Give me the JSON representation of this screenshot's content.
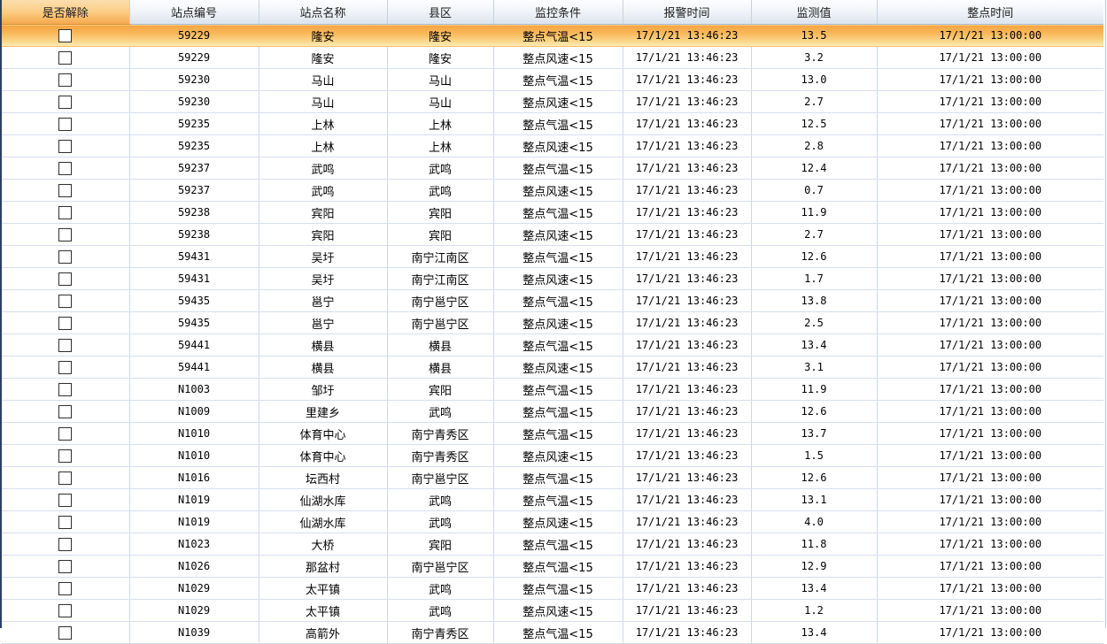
{
  "colors": {
    "selected_row_gradient_top": "#f5a440",
    "selected_row_gradient_bottom": "#fdedbc",
    "selected_header_top": "#fcdfae",
    "selected_header_bottom": "#f6a94e",
    "header_gradient_top": "#fdfeff",
    "header_gradient_bottom": "#dde3ee",
    "gridline_vertical": "#cbd8ea",
    "gridline_horizontal": "#d7dfee",
    "left_border": "#2e3e64"
  },
  "table": {
    "columns": [
      {
        "key": "release",
        "label": "是否解除"
      },
      {
        "key": "station_id",
        "label": "站点编号"
      },
      {
        "key": "station_name",
        "label": "站点名称"
      },
      {
        "key": "district",
        "label": "县区"
      },
      {
        "key": "condition",
        "label": "监控条件"
      },
      {
        "key": "alarm_time",
        "label": "报警时间"
      },
      {
        "key": "value",
        "label": "监测值"
      },
      {
        "key": "hour_time",
        "label": "整点时间"
      }
    ],
    "rows": [
      {
        "selected": true,
        "checked": false,
        "station_id": "59229",
        "station_name": "隆安",
        "district": "隆安",
        "condition": "整点气温<15",
        "alarm_time": "17/1/21 13:46:23",
        "value": "13.5",
        "hour_time": "17/1/21 13:00:00"
      },
      {
        "selected": false,
        "checked": false,
        "station_id": "59229",
        "station_name": "隆安",
        "district": "隆安",
        "condition": "整点风速<15",
        "alarm_time": "17/1/21 13:46:23",
        "value": "3.2",
        "hour_time": "17/1/21 13:00:00"
      },
      {
        "selected": false,
        "checked": false,
        "station_id": "59230",
        "station_name": "马山",
        "district": "马山",
        "condition": "整点气温<15",
        "alarm_time": "17/1/21 13:46:23",
        "value": "13.0",
        "hour_time": "17/1/21 13:00:00"
      },
      {
        "selected": false,
        "checked": false,
        "station_id": "59230",
        "station_name": "马山",
        "district": "马山",
        "condition": "整点风速<15",
        "alarm_time": "17/1/21 13:46:23",
        "value": "2.7",
        "hour_time": "17/1/21 13:00:00"
      },
      {
        "selected": false,
        "checked": false,
        "station_id": "59235",
        "station_name": "上林",
        "district": "上林",
        "condition": "整点气温<15",
        "alarm_time": "17/1/21 13:46:23",
        "value": "12.5",
        "hour_time": "17/1/21 13:00:00"
      },
      {
        "selected": false,
        "checked": false,
        "station_id": "59235",
        "station_name": "上林",
        "district": "上林",
        "condition": "整点风速<15",
        "alarm_time": "17/1/21 13:46:23",
        "value": "2.8",
        "hour_time": "17/1/21 13:00:00"
      },
      {
        "selected": false,
        "checked": false,
        "station_id": "59237",
        "station_name": "武鸣",
        "district": "武鸣",
        "condition": "整点气温<15",
        "alarm_time": "17/1/21 13:46:23",
        "value": "12.4",
        "hour_time": "17/1/21 13:00:00"
      },
      {
        "selected": false,
        "checked": false,
        "station_id": "59237",
        "station_name": "武鸣",
        "district": "武鸣",
        "condition": "整点风速<15",
        "alarm_time": "17/1/21 13:46:23",
        "value": "0.7",
        "hour_time": "17/1/21 13:00:00"
      },
      {
        "selected": false,
        "checked": false,
        "station_id": "59238",
        "station_name": "宾阳",
        "district": "宾阳",
        "condition": "整点气温<15",
        "alarm_time": "17/1/21 13:46:23",
        "value": "11.9",
        "hour_time": "17/1/21 13:00:00"
      },
      {
        "selected": false,
        "checked": false,
        "station_id": "59238",
        "station_name": "宾阳",
        "district": "宾阳",
        "condition": "整点风速<15",
        "alarm_time": "17/1/21 13:46:23",
        "value": "2.7",
        "hour_time": "17/1/21 13:00:00"
      },
      {
        "selected": false,
        "checked": false,
        "station_id": "59431",
        "station_name": "吴圩",
        "district": "南宁江南区",
        "condition": "整点气温<15",
        "alarm_time": "17/1/21 13:46:23",
        "value": "12.6",
        "hour_time": "17/1/21 13:00:00"
      },
      {
        "selected": false,
        "checked": false,
        "station_id": "59431",
        "station_name": "吴圩",
        "district": "南宁江南区",
        "condition": "整点风速<15",
        "alarm_time": "17/1/21 13:46:23",
        "value": "1.7",
        "hour_time": "17/1/21 13:00:00"
      },
      {
        "selected": false,
        "checked": false,
        "station_id": "59435",
        "station_name": "邕宁",
        "district": "南宁邕宁区",
        "condition": "整点气温<15",
        "alarm_time": "17/1/21 13:46:23",
        "value": "13.8",
        "hour_time": "17/1/21 13:00:00"
      },
      {
        "selected": false,
        "checked": false,
        "station_id": "59435",
        "station_name": "邕宁",
        "district": "南宁邕宁区",
        "condition": "整点风速<15",
        "alarm_time": "17/1/21 13:46:23",
        "value": "2.5",
        "hour_time": "17/1/21 13:00:00"
      },
      {
        "selected": false,
        "checked": false,
        "station_id": "59441",
        "station_name": "横县",
        "district": "横县",
        "condition": "整点气温<15",
        "alarm_time": "17/1/21 13:46:23",
        "value": "13.4",
        "hour_time": "17/1/21 13:00:00"
      },
      {
        "selected": false,
        "checked": false,
        "station_id": "59441",
        "station_name": "横县",
        "district": "横县",
        "condition": "整点风速<15",
        "alarm_time": "17/1/21 13:46:23",
        "value": "3.1",
        "hour_time": "17/1/21 13:00:00"
      },
      {
        "selected": false,
        "checked": false,
        "station_id": "N1003",
        "station_name": "邹圩",
        "district": "宾阳",
        "condition": "整点气温<15",
        "alarm_time": "17/1/21 13:46:23",
        "value": "11.9",
        "hour_time": "17/1/21 13:00:00"
      },
      {
        "selected": false,
        "checked": false,
        "station_id": "N1009",
        "station_name": "里建乡",
        "district": "武鸣",
        "condition": "整点气温<15",
        "alarm_time": "17/1/21 13:46:23",
        "value": "12.6",
        "hour_time": "17/1/21 13:00:00"
      },
      {
        "selected": false,
        "checked": false,
        "station_id": "N1010",
        "station_name": "体育中心",
        "district": "南宁青秀区",
        "condition": "整点气温<15",
        "alarm_time": "17/1/21 13:46:23",
        "value": "13.7",
        "hour_time": "17/1/21 13:00:00"
      },
      {
        "selected": false,
        "checked": false,
        "station_id": "N1010",
        "station_name": "体育中心",
        "district": "南宁青秀区",
        "condition": "整点风速<15",
        "alarm_time": "17/1/21 13:46:23",
        "value": "1.5",
        "hour_time": "17/1/21 13:00:00"
      },
      {
        "selected": false,
        "checked": false,
        "station_id": "N1016",
        "station_name": "坛西村",
        "district": "南宁邕宁区",
        "condition": "整点气温<15",
        "alarm_time": "17/1/21 13:46:23",
        "value": "12.6",
        "hour_time": "17/1/21 13:00:00"
      },
      {
        "selected": false,
        "checked": false,
        "station_id": "N1019",
        "station_name": "仙湖水库",
        "district": "武鸣",
        "condition": "整点气温<15",
        "alarm_time": "17/1/21 13:46:23",
        "value": "13.1",
        "hour_time": "17/1/21 13:00:00"
      },
      {
        "selected": false,
        "checked": false,
        "station_id": "N1019",
        "station_name": "仙湖水库",
        "district": "武鸣",
        "condition": "整点风速<15",
        "alarm_time": "17/1/21 13:46:23",
        "value": "4.0",
        "hour_time": "17/1/21 13:00:00"
      },
      {
        "selected": false,
        "checked": false,
        "station_id": "N1023",
        "station_name": "大桥",
        "district": "宾阳",
        "condition": "整点气温<15",
        "alarm_time": "17/1/21 13:46:23",
        "value": "11.8",
        "hour_time": "17/1/21 13:00:00"
      },
      {
        "selected": false,
        "checked": false,
        "station_id": "N1026",
        "station_name": "那盆村",
        "district": "南宁邕宁区",
        "condition": "整点气温<15",
        "alarm_time": "17/1/21 13:46:23",
        "value": "12.9",
        "hour_time": "17/1/21 13:00:00"
      },
      {
        "selected": false,
        "checked": false,
        "station_id": "N1029",
        "station_name": "太平镇",
        "district": "武鸣",
        "condition": "整点气温<15",
        "alarm_time": "17/1/21 13:46:23",
        "value": "13.4",
        "hour_time": "17/1/21 13:00:00"
      },
      {
        "selected": false,
        "checked": false,
        "station_id": "N1029",
        "station_name": "太平镇",
        "district": "武鸣",
        "condition": "整点风速<15",
        "alarm_time": "17/1/21 13:46:23",
        "value": "1.2",
        "hour_time": "17/1/21 13:00:00"
      },
      {
        "selected": false,
        "checked": false,
        "station_id": "N1039",
        "station_name": "高箭外",
        "district": "南宁青秀区",
        "condition": "整点气温<15",
        "alarm_time": "17/1/21 13:46:23",
        "value": "13.4",
        "hour_time": "17/1/21 13:00:00"
      }
    ]
  }
}
